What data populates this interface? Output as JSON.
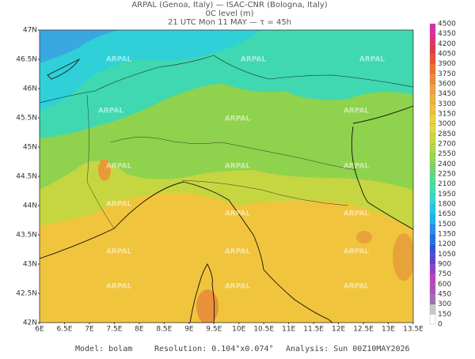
{
  "header": {
    "line1": "ARPAL (Genoa, Italy)  —  ISAC-CNR (Bologna, Italy)",
    "line2": "0C level (m)",
    "line3": "21 UTC Mon 11 MAY  —  τ = 45h"
  },
  "map": {
    "lat_labels": [
      "47N",
      "46.5N",
      "46N",
      "45.5N",
      "45N",
      "44.5N",
      "44N",
      "43.5N",
      "43N",
      "42.5N",
      "42N"
    ],
    "lon_labels": [
      "6E",
      "6.5E",
      "7E",
      "7.5E",
      "8E",
      "8.5E",
      "9E",
      "9.5E",
      "10E",
      "10.5E",
      "11E",
      "11.5E",
      "12E",
      "12.5E",
      "13E",
      "13.5E"
    ],
    "watermark": "ARPAL"
  },
  "colorbar": {
    "ticks": [
      0,
      150,
      300,
      450,
      600,
      750,
      900,
      1050,
      1200,
      1350,
      1500,
      1650,
      1800,
      1950,
      2100,
      2250,
      2400,
      2550,
      2700,
      2850,
      3000,
      3150,
      3300,
      3450,
      3600,
      3750,
      3900,
      4050,
      4200,
      4350,
      4500
    ]
  },
  "footer": {
    "model": "Model: bolam",
    "resolution": "Resolution: 0.104°x0.074°",
    "analysis": "Analysis: Sun 00Z10MAY2026"
  }
}
